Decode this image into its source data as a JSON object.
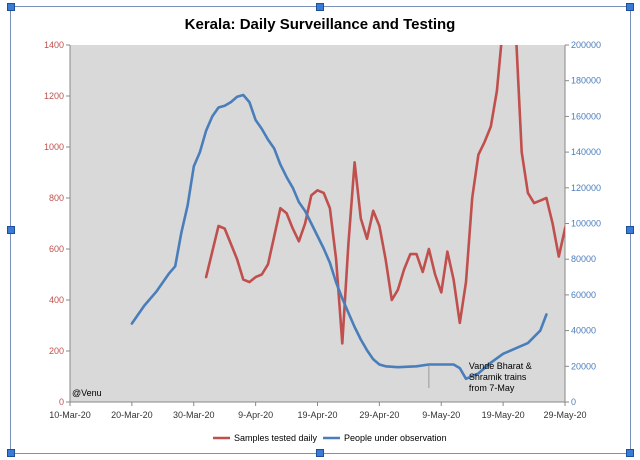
{
  "chart_data": {
    "type": "line",
    "title": "Kerala: Daily Surveillance and Testing",
    "xlabel": "",
    "ylabel_left": "",
    "ylabel_right": "",
    "x_ticks": [
      "10-Mar-20",
      "20-Mar-20",
      "30-Mar-20",
      "9-Apr-20",
      "19-Apr-20",
      "29-Apr-20",
      "9-May-20",
      "19-May-20",
      "29-May-20"
    ],
    "x_range": [
      "2020-03-10",
      "2020-05-29"
    ],
    "ylim_left": [
      0,
      1400
    ],
    "yticks_left": [
      0,
      200,
      400,
      600,
      800,
      1000,
      1200,
      1400
    ],
    "ylim_right": [
      0,
      200000
    ],
    "yticks_right": [
      0,
      20000,
      40000,
      60000,
      80000,
      100000,
      120000,
      140000,
      160000,
      180000,
      200000
    ],
    "plot_background": "#d9d9d9",
    "legend_position": "bottom",
    "series": [
      {
        "name": "Samples tested daily",
        "axis": "left",
        "color": "#c0504d",
        "points": [
          [
            "2020-04-01",
            490
          ],
          [
            "2020-04-02",
            590
          ],
          [
            "2020-04-03",
            690
          ],
          [
            "2020-04-04",
            680
          ],
          [
            "2020-04-05",
            620
          ],
          [
            "2020-04-06",
            560
          ],
          [
            "2020-04-07",
            480
          ],
          [
            "2020-04-08",
            470
          ],
          [
            "2020-04-09",
            490
          ],
          [
            "2020-04-10",
            500
          ],
          [
            "2020-04-11",
            540
          ],
          [
            "2020-04-12",
            650
          ],
          [
            "2020-04-13",
            760
          ],
          [
            "2020-04-14",
            740
          ],
          [
            "2020-04-15",
            680
          ],
          [
            "2020-04-16",
            630
          ],
          [
            "2020-04-17",
            700
          ],
          [
            "2020-04-18",
            810
          ],
          [
            "2020-04-19",
            830
          ],
          [
            "2020-04-20",
            820
          ],
          [
            "2020-04-21",
            760
          ],
          [
            "2020-04-22",
            560
          ],
          [
            "2020-04-23",
            230
          ],
          [
            "2020-04-24",
            620
          ],
          [
            "2020-04-25",
            940
          ],
          [
            "2020-04-26",
            720
          ],
          [
            "2020-04-27",
            640
          ],
          [
            "2020-04-28",
            750
          ],
          [
            "2020-04-29",
            690
          ],
          [
            "2020-04-30",
            560
          ],
          [
            "2020-05-01",
            400
          ],
          [
            "2020-05-02",
            440
          ],
          [
            "2020-05-03",
            520
          ],
          [
            "2020-05-04",
            580
          ],
          [
            "2020-05-05",
            580
          ],
          [
            "2020-05-06",
            510
          ],
          [
            "2020-05-07",
            600
          ],
          [
            "2020-05-08",
            500
          ],
          [
            "2020-05-09",
            430
          ],
          [
            "2020-05-10",
            590
          ],
          [
            "2020-05-11",
            480
          ],
          [
            "2020-05-12",
            310
          ],
          [
            "2020-05-13",
            470
          ],
          [
            "2020-05-14",
            800
          ],
          [
            "2020-05-15",
            970
          ],
          [
            "2020-05-16",
            1020
          ],
          [
            "2020-05-17",
            1080
          ],
          [
            "2020-05-18",
            1220
          ],
          [
            "2020-05-19",
            1480
          ],
          [
            "2020-05-20",
            1500
          ],
          [
            "2020-05-21",
            1480
          ],
          [
            "2020-05-22",
            980
          ],
          [
            "2020-05-23",
            820
          ],
          [
            "2020-05-24",
            780
          ],
          [
            "2020-05-25",
            790
          ],
          [
            "2020-05-26",
            800
          ],
          [
            "2020-05-27",
            700
          ],
          [
            "2020-05-28",
            570
          ],
          [
            "2020-05-29",
            680
          ],
          [
            "2020-05-30",
            750
          ],
          [
            "2020-05-31",
            810
          ]
        ]
      },
      {
        "name": "People under observation",
        "axis": "right",
        "color": "#4a7ebb",
        "points": [
          [
            "2020-03-20",
            44000
          ],
          [
            "2020-03-22",
            54000
          ],
          [
            "2020-03-24",
            62000
          ],
          [
            "2020-03-26",
            72000
          ],
          [
            "2020-03-27",
            76000
          ],
          [
            "2020-03-28",
            95000
          ],
          [
            "2020-03-29",
            110000
          ],
          [
            "2020-03-30",
            132000
          ],
          [
            "2020-03-31",
            140000
          ],
          [
            "2020-04-01",
            152000
          ],
          [
            "2020-04-02",
            160000
          ],
          [
            "2020-04-03",
            165000
          ],
          [
            "2020-04-04",
            166000
          ],
          [
            "2020-04-05",
            168000
          ],
          [
            "2020-04-06",
            171000
          ],
          [
            "2020-04-07",
            172000
          ],
          [
            "2020-04-08",
            168000
          ],
          [
            "2020-04-09",
            158000
          ],
          [
            "2020-04-10",
            153000
          ],
          [
            "2020-04-11",
            147000
          ],
          [
            "2020-04-12",
            142000
          ],
          [
            "2020-04-13",
            133000
          ],
          [
            "2020-04-14",
            126000
          ],
          [
            "2020-04-15",
            120000
          ],
          [
            "2020-04-16",
            112000
          ],
          [
            "2020-04-17",
            107000
          ],
          [
            "2020-04-18",
            100000
          ],
          [
            "2020-04-19",
            93000
          ],
          [
            "2020-04-20",
            86000
          ],
          [
            "2020-04-21",
            78000
          ],
          [
            "2020-04-22",
            67000
          ],
          [
            "2020-04-23",
            58000
          ],
          [
            "2020-04-24",
            50000
          ],
          [
            "2020-04-25",
            42000
          ],
          [
            "2020-04-26",
            35000
          ],
          [
            "2020-04-27",
            29000
          ],
          [
            "2020-04-28",
            24000
          ],
          [
            "2020-04-29",
            21000
          ],
          [
            "2020-04-30",
            20000
          ],
          [
            "2020-05-02",
            19500
          ],
          [
            "2020-05-05",
            20000
          ],
          [
            "2020-05-07",
            21000
          ],
          [
            "2020-05-09",
            21000
          ],
          [
            "2020-05-11",
            21000
          ],
          [
            "2020-05-12",
            19000
          ],
          [
            "2020-05-13",
            13000
          ],
          [
            "2020-05-15",
            16000
          ],
          [
            "2020-05-17",
            22000
          ],
          [
            "2020-05-19",
            27000
          ],
          [
            "2020-05-21",
            30000
          ],
          [
            "2020-05-23",
            33000
          ],
          [
            "2020-05-25",
            40000
          ],
          [
            "2020-05-26",
            49000
          ]
        ]
      }
    ],
    "annotations": [
      {
        "text_lines": [
          "Vande Bharat &",
          "Shramik trains",
          "from 7-May"
        ],
        "date": "2020-05-07"
      },
      {
        "text_lines": [
          "@Venu"
        ],
        "position": "bottom-left"
      }
    ]
  }
}
